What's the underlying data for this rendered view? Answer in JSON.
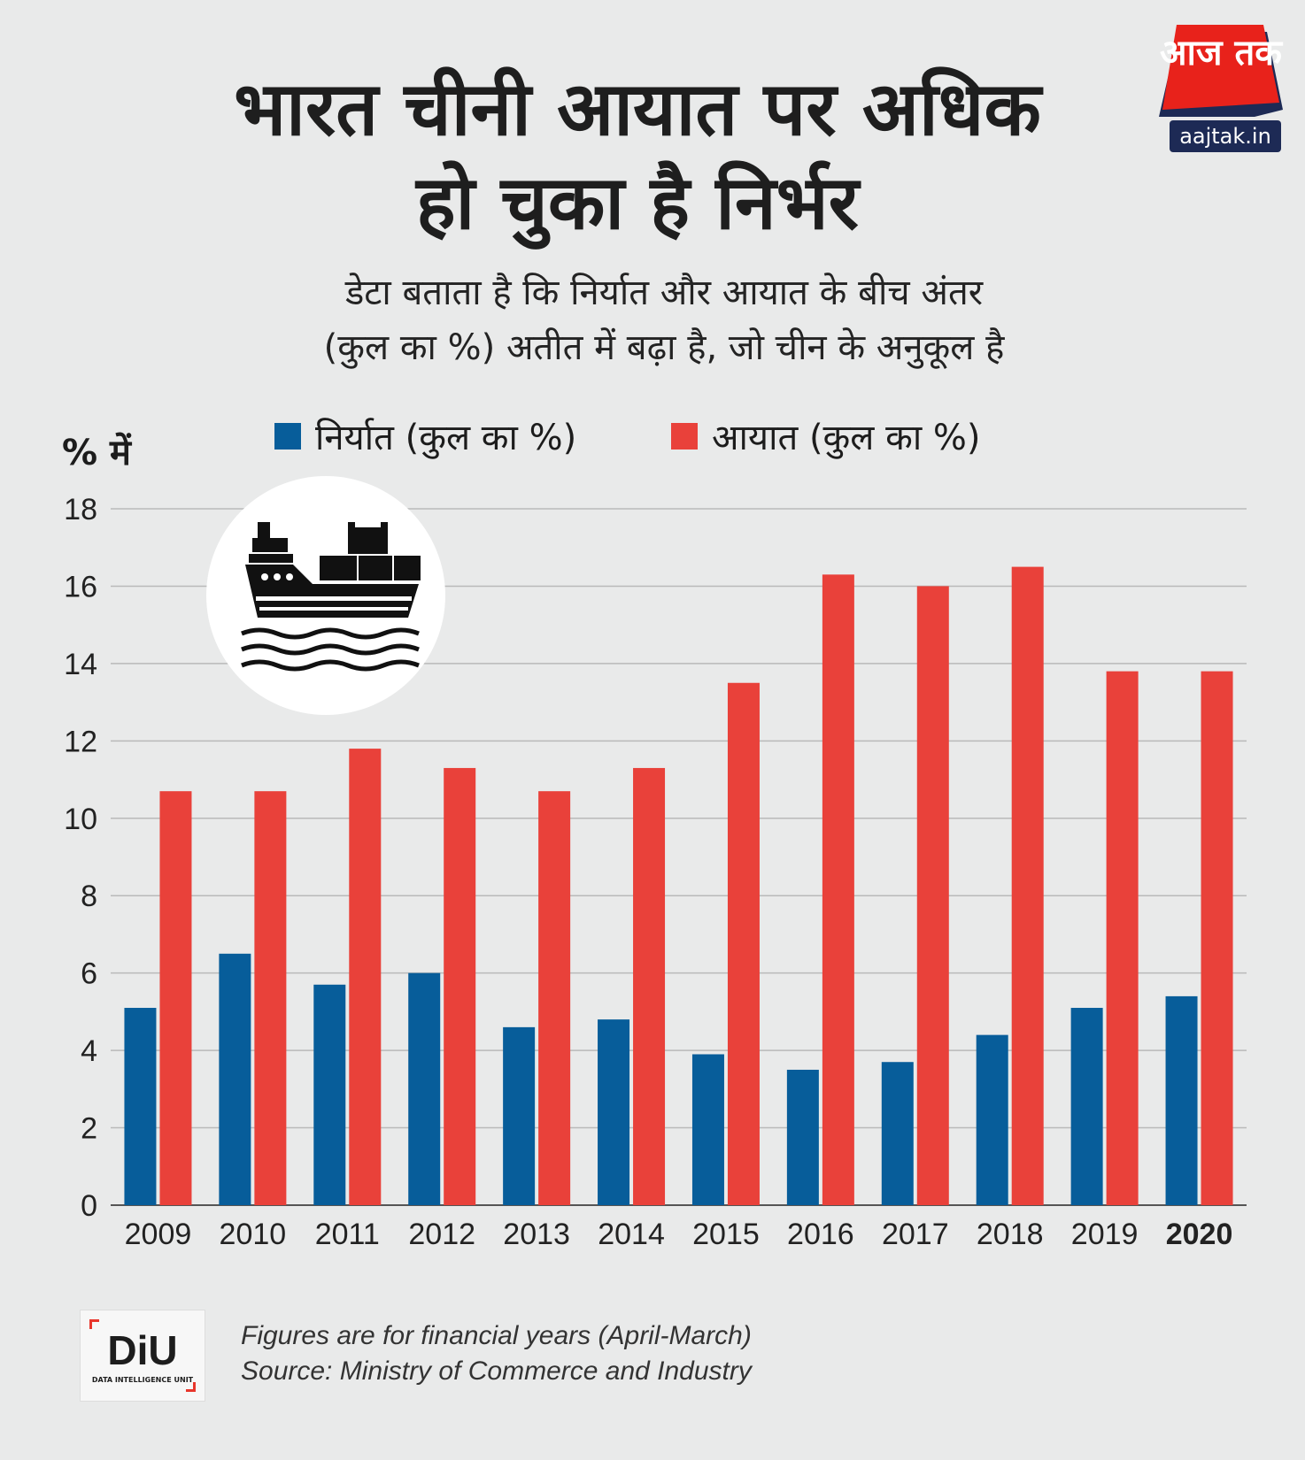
{
  "header": {
    "title_line1": "भारत चीनी आयात पर अधिक",
    "title_line2": "हो चुका है निर्भर",
    "subtitle_line1": "डेटा बताता है कि निर्यात और आयात के बीच अंतर",
    "subtitle_line2": "(कुल का %)  अतीत में बढ़ा है, जो चीन के अनुकूल है"
  },
  "logo": {
    "name": "आज तक",
    "domain": "aajtak.in"
  },
  "footer": {
    "badge": "DiU",
    "badge_sub": "DATA INTELLIGENCE UNIT",
    "note": "Figures are for financial years (April-March)",
    "source": "Source: Ministry of Commerce and Industry"
  },
  "colors": {
    "export": "#075d9a",
    "import": "#e9413a",
    "logo_red": "#e8221b"
  },
  "icons": [
    "cargo-ship-icon"
  ],
  "chart_data": {
    "type": "bar",
    "title": "भारत चीनी आयात पर अधिक हो चुका है निर्भर",
    "ylabel": "% में",
    "xlabel": "",
    "ylim": [
      0,
      18
    ],
    "yticks": [
      0,
      2,
      4,
      6,
      8,
      10,
      12,
      14,
      16,
      18
    ],
    "grid": true,
    "legend_position": "top",
    "categories": [
      "2009",
      "2010",
      "2011",
      "2012",
      "2013",
      "2014",
      "2015",
      "2016",
      "2017",
      "2018",
      "2019",
      "2020"
    ],
    "highlight_category": "2020",
    "series": [
      {
        "name": "निर्यात (कुल का %)",
        "color": "#075d9a",
        "values": [
          5.1,
          6.5,
          5.7,
          6.0,
          4.6,
          4.8,
          3.9,
          3.5,
          3.7,
          4.4,
          5.1,
          5.4
        ]
      },
      {
        "name": "आयात (कुल का %)",
        "color": "#e9413a",
        "values": [
          10.7,
          10.7,
          11.8,
          11.3,
          10.7,
          11.3,
          13.5,
          16.3,
          16.0,
          16.5,
          13.8,
          13.8
        ]
      }
    ]
  }
}
